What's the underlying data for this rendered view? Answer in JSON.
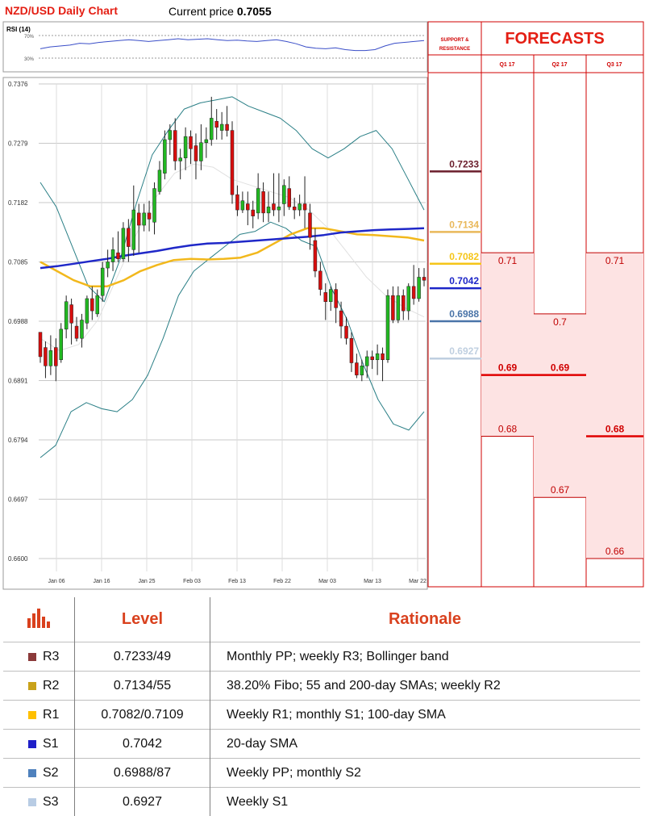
{
  "header": {
    "title": "NZD/USD Daily Chart",
    "price_label": "Current price",
    "price_value": "0.7055"
  },
  "chart_data": [
    {
      "type": "candlestick",
      "title": "NZD/USD Daily Chart",
      "y_ticks": [
        "0.7376",
        "0.7279",
        "0.7182",
        "0.7085",
        "0.6988",
        "0.6891",
        "0.6794",
        "0.6697",
        "0.6600"
      ],
      "ylim": [
        0.66,
        0.7376
      ],
      "x_ticks": [
        "Jan 06",
        "Jan 16",
        "Jan 25",
        "Feb 03",
        "Feb 13",
        "Feb 22",
        "Mar 03",
        "Mar 13",
        "Mar 22"
      ],
      "grid": true,
      "candles": [
        [
          0.697,
          0.693,
          0.6965,
          0.692
        ],
        [
          0.6945,
          0.6915,
          0.6955,
          0.6895
        ],
        [
          0.6915,
          0.694,
          0.6965,
          0.69
        ],
        [
          0.6945,
          0.6915,
          0.696,
          0.689
        ],
        [
          0.6925,
          0.6975,
          0.6985,
          0.692
        ],
        [
          0.6975,
          0.702,
          0.703,
          0.696
        ],
        [
          0.7015,
          0.6985,
          0.7025,
          0.695
        ],
        [
          0.698,
          0.696,
          0.6995,
          0.6955
        ],
        [
          0.696,
          0.699,
          0.7,
          0.6945
        ],
        [
          0.6985,
          0.7025,
          0.703,
          0.6975
        ],
        [
          0.7025,
          0.7005,
          0.7045,
          0.699
        ],
        [
          0.7,
          0.703,
          0.704,
          0.6995
        ],
        [
          0.703,
          0.7075,
          0.7085,
          0.702
        ],
        [
          0.7075,
          0.7085,
          0.7105,
          0.706
        ],
        [
          0.7085,
          0.7105,
          0.7125,
          0.707
        ],
        [
          0.71,
          0.709,
          0.7135,
          0.7085
        ],
        [
          0.709,
          0.714,
          0.715,
          0.7085
        ],
        [
          0.714,
          0.711,
          0.7155,
          0.7085
        ],
        [
          0.7105,
          0.717,
          0.721,
          0.7095
        ],
        [
          0.7165,
          0.7145,
          0.718,
          0.71
        ],
        [
          0.7145,
          0.7165,
          0.718,
          0.7135
        ],
        [
          0.7165,
          0.7155,
          0.7185,
          0.7135
        ],
        [
          0.715,
          0.7205,
          0.7215,
          0.713
        ],
        [
          0.72,
          0.7235,
          0.725,
          0.7195
        ],
        [
          0.723,
          0.7285,
          0.73,
          0.722
        ],
        [
          0.7285,
          0.73,
          0.731,
          0.726
        ],
        [
          0.73,
          0.725,
          0.732,
          0.7235
        ],
        [
          0.725,
          0.7255,
          0.727,
          0.722
        ],
        [
          0.7255,
          0.729,
          0.7305,
          0.7235
        ],
        [
          0.729,
          0.727,
          0.73,
          0.7245
        ],
        [
          0.7275,
          0.725,
          0.7295,
          0.722
        ],
        [
          0.725,
          0.728,
          0.731,
          0.7235
        ],
        [
          0.728,
          0.7285,
          0.7305,
          0.7255
        ],
        [
          0.7285,
          0.732,
          0.7355,
          0.7275
        ],
        [
          0.7315,
          0.7305,
          0.7335,
          0.7285
        ],
        [
          0.73,
          0.731,
          0.733,
          0.7285
        ],
        [
          0.731,
          0.73,
          0.734,
          0.729
        ],
        [
          0.73,
          0.7195,
          0.7315,
          0.718
        ],
        [
          0.7195,
          0.717,
          0.721,
          0.716
        ],
        [
          0.717,
          0.7185,
          0.72,
          0.7165
        ],
        [
          0.718,
          0.717,
          0.72,
          0.7145
        ],
        [
          0.717,
          0.716,
          0.7185,
          0.714
        ],
        [
          0.7165,
          0.7205,
          0.723,
          0.7155
        ],
        [
          0.72,
          0.7165,
          0.7215,
          0.715
        ],
        [
          0.7165,
          0.7175,
          0.72,
          0.715
        ],
        [
          0.718,
          0.717,
          0.723,
          0.716
        ],
        [
          0.717,
          0.7175,
          0.723,
          0.715
        ],
        [
          0.718,
          0.721,
          0.722,
          0.716
        ],
        [
          0.7205,
          0.7175,
          0.7225,
          0.717
        ],
        [
          0.7175,
          0.717,
          0.719,
          0.7155
        ],
        [
          0.717,
          0.718,
          0.7195,
          0.716
        ],
        [
          0.718,
          0.717,
          0.7225,
          0.714
        ],
        [
          0.7165,
          0.7125,
          0.718,
          0.7105
        ],
        [
          0.712,
          0.707,
          0.714,
          0.706
        ],
        [
          0.707,
          0.704,
          0.7085,
          0.703
        ],
        [
          0.7035,
          0.702,
          0.705,
          0.699
        ],
        [
          0.702,
          0.704,
          0.7045,
          0.7005
        ],
        [
          0.704,
          0.701,
          0.705,
          0.6985
        ],
        [
          0.7005,
          0.698,
          0.702,
          0.696
        ],
        [
          0.698,
          0.696,
          0.6995,
          0.695
        ],
        [
          0.696,
          0.692,
          0.697,
          0.6905
        ],
        [
          0.692,
          0.69,
          0.6935,
          0.6895
        ],
        [
          0.69,
          0.6915,
          0.6925,
          0.689
        ],
        [
          0.6915,
          0.693,
          0.694,
          0.6895
        ],
        [
          0.693,
          0.6925,
          0.694,
          0.691
        ],
        [
          0.6925,
          0.6935,
          0.695,
          0.69
        ],
        [
          0.6935,
          0.6925,
          0.6945,
          0.689
        ],
        [
          0.6925,
          0.703,
          0.704,
          0.692
        ],
        [
          0.703,
          0.699,
          0.7045,
          0.6985
        ],
        [
          0.699,
          0.703,
          0.7045,
          0.6985
        ],
        [
          0.703,
          0.7005,
          0.704,
          0.699
        ],
        [
          0.7005,
          0.7045,
          0.705,
          0.699
        ],
        [
          0.7045,
          0.7025,
          0.708,
          0.7015
        ],
        [
          0.7025,
          0.706,
          0.7075,
          0.702
        ],
        [
          0.706,
          0.7055,
          0.7075,
          0.7045
        ]
      ],
      "sma_20_dark_blue": [
        0.7075,
        0.7078,
        0.7082,
        0.7086,
        0.709,
        0.7095,
        0.7099,
        0.7103,
        0.7108,
        0.7112,
        0.7115,
        0.7116,
        0.7118,
        0.712,
        0.7122,
        0.7124,
        0.7126,
        0.7129,
        0.7133,
        0.7135,
        0.7137,
        0.7138,
        0.7139,
        0.714
      ],
      "sma_yellow": [
        0.7085,
        0.707,
        0.7055,
        0.7045,
        0.7045,
        0.7055,
        0.707,
        0.708,
        0.7088,
        0.709,
        0.7089,
        0.709,
        0.7092,
        0.71,
        0.7115,
        0.713,
        0.714,
        0.714,
        0.7135,
        0.713,
        0.7129,
        0.7127,
        0.7125,
        0.712
      ],
      "bollinger_upper": [
        0.7215,
        0.7175,
        0.711,
        0.7045,
        0.702,
        0.709,
        0.718,
        0.726,
        0.73,
        0.7335,
        0.7345,
        0.735,
        0.7355,
        0.734,
        0.733,
        0.732,
        0.73,
        0.727,
        0.7255,
        0.727,
        0.729,
        0.73,
        0.727,
        0.722,
        0.717
      ],
      "bollinger_lower": [
        0.6765,
        0.6785,
        0.684,
        0.6855,
        0.6845,
        0.684,
        0.686,
        0.69,
        0.696,
        0.703,
        0.707,
        0.709,
        0.711,
        0.713,
        0.7135,
        0.715,
        0.714,
        0.712,
        0.711,
        0.704,
        0.699,
        0.692,
        0.686,
        0.682,
        0.681,
        0.684
      ],
      "bollinger_mid": [
        0.696,
        0.694,
        0.695,
        0.699,
        0.706,
        0.713,
        0.719,
        0.723,
        0.7245,
        0.724,
        0.722,
        0.721,
        0.72,
        0.719,
        0.717,
        0.714,
        0.71,
        0.706,
        0.703,
        0.701,
        0.6995
      ]
    },
    {
      "type": "line",
      "title": "RSI (14)",
      "y_ticks": [
        "70%",
        "30%"
      ],
      "ylim": [
        0,
        100
      ],
      "values": [
        44,
        48,
        50,
        52,
        56,
        55,
        58,
        60,
        62,
        64,
        62,
        60,
        62,
        64,
        66,
        64,
        65,
        66,
        64,
        62,
        63,
        61,
        60,
        62,
        64,
        60,
        55,
        48,
        45,
        44,
        46,
        42,
        40,
        40,
        42,
        50,
        56,
        58,
        60,
        62
      ]
    }
  ],
  "sr_panel": {
    "heading": "SUPPORT & RESISTANCE",
    "levels": [
      {
        "label": "0.7233",
        "value": 0.7233,
        "color": "#6b1e2c"
      },
      {
        "label": "0.7134",
        "value": 0.7134,
        "color": "#e9b85a"
      },
      {
        "label": "0.7082",
        "value": 0.7082,
        "color": "#f5c518"
      },
      {
        "label": "0.7042",
        "value": 0.7042,
        "color": "#1d26c8"
      },
      {
        "label": "0.6988",
        "value": 0.6988,
        "color": "#4a74a8"
      },
      {
        "label": "0.6927",
        "value": 0.6927,
        "color": "#bfcfe0"
      }
    ]
  },
  "forecasts": {
    "title": "FORECASTS",
    "columns": [
      {
        "label": "Q1 17",
        "top": {
          "label": "0.71",
          "value": 0.71
        },
        "mid": {
          "label": "0.69",
          "value": 0.69
        },
        "low": {
          "label": "0.68",
          "value": 0.68
        }
      },
      {
        "label": "Q2 17",
        "top": {
          "label": "0.7",
          "value": 0.7
        },
        "mid": {
          "label": "0.69",
          "value": 0.69
        },
        "low": {
          "label": "0.67",
          "value": 0.67
        }
      },
      {
        "label": "Q3 17",
        "top": {
          "label": "0.71",
          "value": 0.71
        },
        "mid": {
          "label": "0.68",
          "value": 0.68
        },
        "low": {
          "label": "0.66",
          "value": 0.66
        }
      }
    ]
  },
  "levels_table": {
    "header_level": "Level",
    "header_rationale": "Rationale",
    "rows": [
      {
        "name": "R3",
        "color": "#8b3a3a",
        "level": "0.7233/49",
        "rationale": "Monthly PP; weekly R3; Bollinger band"
      },
      {
        "name": "R2",
        "color": "#c9a21a",
        "level": "0.7134/55",
        "rationale": "38.20% Fibo; 55 and 200-day SMAs; weekly R2"
      },
      {
        "name": "R1",
        "color": "#ffc000",
        "level": "0.7082/0.7109",
        "rationale": "Weekly R1; monthly S1; 100-day SMA"
      },
      {
        "name": "S1",
        "color": "#1f1fc8",
        "level": "0.7042",
        "rationale": "20-day SMA"
      },
      {
        "name": "S2",
        "color": "#4f81bd",
        "level": "0.6988/87",
        "rationale": "Weekly PP; monthly S2"
      },
      {
        "name": "S3",
        "color": "#b8cce4",
        "level": "0.6927",
        "rationale": "Weekly S1"
      }
    ]
  }
}
